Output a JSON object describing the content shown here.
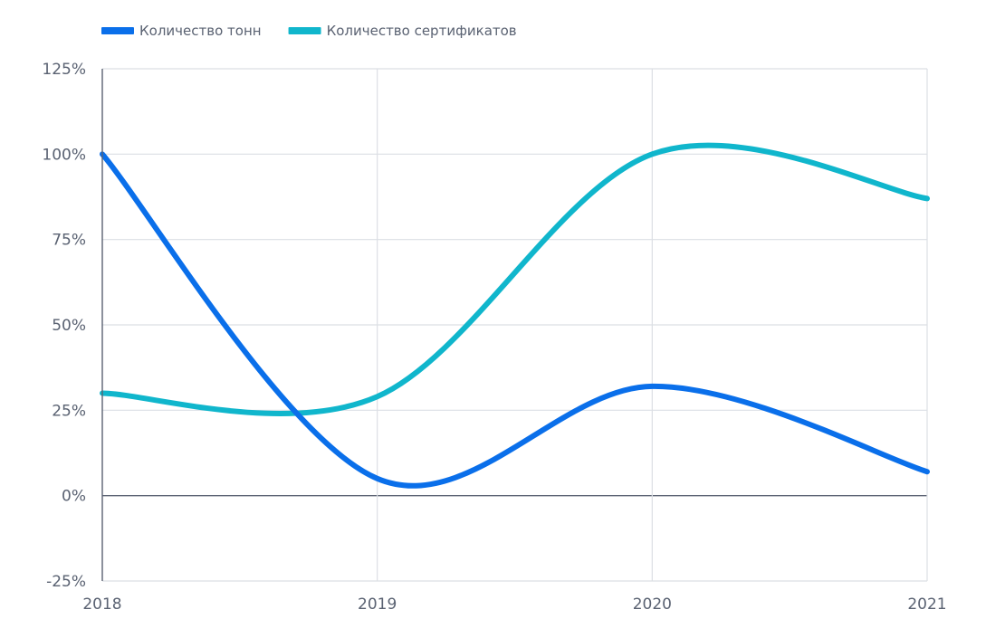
{
  "chart_data": {
    "type": "line",
    "categories": [
      "2018",
      "2019",
      "2020",
      "2021"
    ],
    "y_ticks": [
      "125%",
      "100%",
      "75%",
      "50%",
      "25%",
      "0%",
      "-25%"
    ],
    "ylim": [
      -25,
      125
    ],
    "series": [
      {
        "name": "Количество тонн",
        "color": "#0a6fea",
        "values": [
          100,
          5,
          32,
          7
        ]
      },
      {
        "name": "Количество сертификатов",
        "color": "#10b6cc",
        "values": [
          30,
          29,
          100,
          87
        ]
      }
    ],
    "legend_position": "top-left",
    "grid": true,
    "smooth": true
  },
  "colors": {
    "grid": "#dcdfe4",
    "axis": "#5a6272",
    "text": "#5a6272"
  }
}
